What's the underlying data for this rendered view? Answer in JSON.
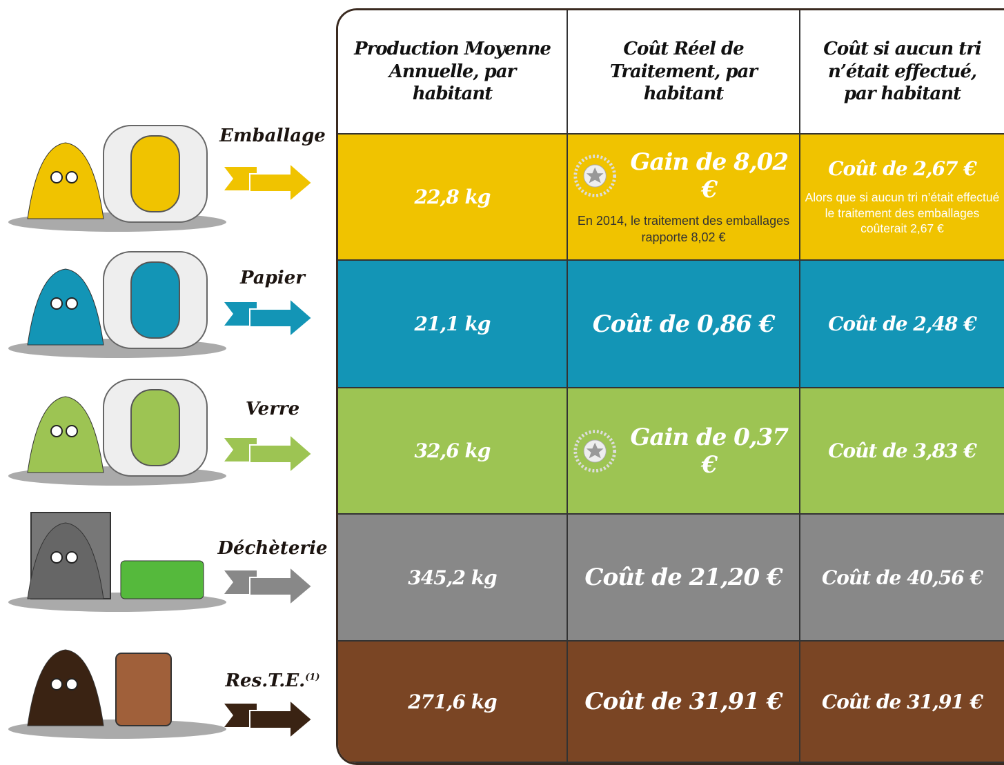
{
  "table": {
    "header": [
      "Production Moyenne Annuelle, par habitant",
      "Coût Réel de Traitement, par habitant",
      "Coût si aucun tri n’était effectué, par habitant"
    ],
    "rows": [
      {
        "label": "Emballage",
        "production": "22,8 kg",
        "cout_reel": "Gain de 8,02 €",
        "cout_reel_note": "En 2014, le traitement des emballages rapporte 8,02 €",
        "cout_sans_tri": "Coût de 2,67 €",
        "cout_sans_tri_note": "Alors que si aucun tri n’était effectué le traitement des emballages coûterait 2,67 €"
      },
      {
        "label": "Papier",
        "production": "21,1 kg",
        "cout_reel": "Coût de 0,86 €",
        "cout_sans_tri": "Coût de 2,48 €"
      },
      {
        "label": "Verre",
        "production": "32,6 kg",
        "cout_reel": "Gain de 0,37 €",
        "cout_sans_tri": "Coût de 3,83 €"
      },
      {
        "label": "Déchèterie",
        "production": "345,2 kg",
        "cout_reel": "Coût de 21,20 €",
        "cout_sans_tri": "Coût de 40,56 €"
      },
      {
        "label": "Res.T.E.",
        "label_note": "(1)",
        "production": "271,6 kg",
        "cout_reel": "Coût de 31,91 €",
        "cout_sans_tri": "Coût de 31,91 €"
      }
    ]
  }
}
